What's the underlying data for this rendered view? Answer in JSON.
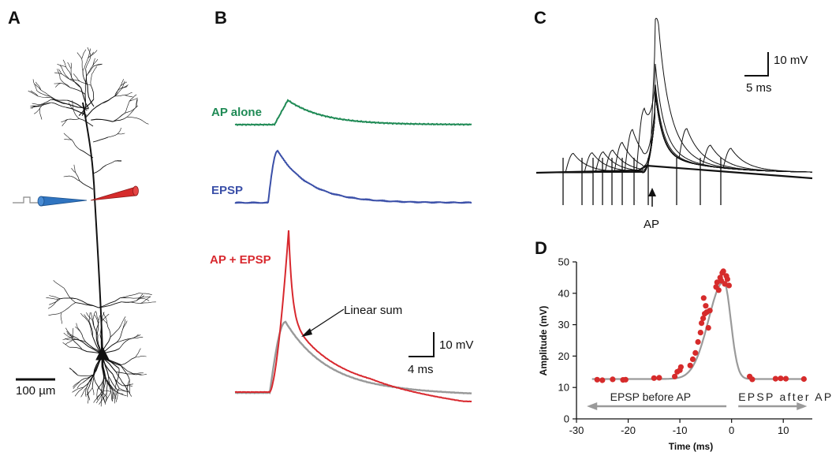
{
  "panels": {
    "a": "A",
    "b": "B",
    "c": "C",
    "d": "D"
  },
  "panel_a": {
    "scale_bar": "100 µm",
    "colors": {
      "left_electrode": "#2f74c0",
      "right_electrode": "#d62b2b",
      "neuron": "#111111"
    }
  },
  "panel_b": {
    "traces": [
      {
        "label": "AP alone",
        "color": "#1f8a55"
      },
      {
        "label": "EPSP",
        "color": "#3a4fa8"
      },
      {
        "label": "AP + EPSP",
        "color": "#d8282e"
      }
    ],
    "linear_sum_label": "Linear sum",
    "linear_sum_color": "#999999",
    "scale_v": "10 mV",
    "scale_t": "4 ms"
  },
  "panel_c": {
    "scale_v": "10 mV",
    "scale_t": "5 ms",
    "ap_label": "AP"
  },
  "chart_data": {
    "type": "scatter",
    "title": "",
    "xlabel": "Time (ms)",
    "ylabel": "Amplitude (mV)",
    "xlim": [
      -30,
      15
    ],
    "ylim": [
      0,
      50
    ],
    "xticks": [
      -30,
      -20,
      -10,
      0,
      10
    ],
    "yticks": [
      0,
      10,
      20,
      30,
      40,
      50
    ],
    "point_color": "#d62b2b",
    "fit_color": "#9a9a9a",
    "annotations": [
      "EPSP before AP",
      "EPSP after AP"
    ],
    "points": [
      {
        "x": -26,
        "y": 12.5
      },
      {
        "x": -25,
        "y": 12.3
      },
      {
        "x": -23,
        "y": 12.6
      },
      {
        "x": -21,
        "y": 12.4
      },
      {
        "x": -20.5,
        "y": 12.5
      },
      {
        "x": -15,
        "y": 13.0
      },
      {
        "x": -14,
        "y": 13.1
      },
      {
        "x": -11,
        "y": 13.5
      },
      {
        "x": -10.5,
        "y": 15.0
      },
      {
        "x": -10,
        "y": 15.5
      },
      {
        "x": -9.8,
        "y": 16.5
      },
      {
        "x": -8,
        "y": 17.0
      },
      {
        "x": -7.5,
        "y": 19.0
      },
      {
        "x": -7,
        "y": 21.0
      },
      {
        "x": -6.5,
        "y": 24.5
      },
      {
        "x": -6,
        "y": 27.5
      },
      {
        "x": -5.8,
        "y": 30.5
      },
      {
        "x": -5.5,
        "y": 32.0
      },
      {
        "x": -5.2,
        "y": 33.5
      },
      {
        "x": -5.0,
        "y": 36.0
      },
      {
        "x": -4.8,
        "y": 34.0
      },
      {
        "x": -5.4,
        "y": 38.5
      },
      {
        "x": -4.5,
        "y": 29.0
      },
      {
        "x": -4.2,
        "y": 34.5
      },
      {
        "x": -3.0,
        "y": 42.0
      },
      {
        "x": -2.8,
        "y": 43.5
      },
      {
        "x": -2.5,
        "y": 41.0
      },
      {
        "x": -2.2,
        "y": 45.0
      },
      {
        "x": -2.0,
        "y": 44.0
      },
      {
        "x": -1.8,
        "y": 46.5
      },
      {
        "x": -1.6,
        "y": 47.0
      },
      {
        "x": -1.3,
        "y": 43.0
      },
      {
        "x": -1.0,
        "y": 45.5
      },
      {
        "x": -0.8,
        "y": 44.5
      },
      {
        "x": -0.5,
        "y": 42.5
      },
      {
        "x": 3.5,
        "y": 13.5
      },
      {
        "x": 4,
        "y": 12.6
      },
      {
        "x": 8.5,
        "y": 12.8
      },
      {
        "x": 9.5,
        "y": 12.9
      },
      {
        "x": 10.5,
        "y": 12.8
      },
      {
        "x": 14,
        "y": 12.7
      }
    ]
  }
}
